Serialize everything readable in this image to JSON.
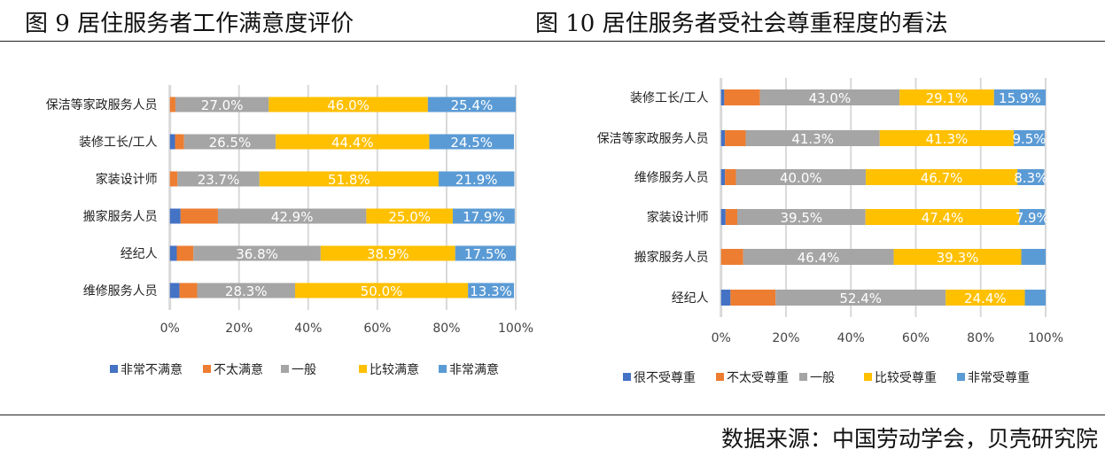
{
  "titles": {
    "left": "图 9  居住服务者工作满意度评价",
    "right": "图 10  居住服务者受社会尊重程度的看法"
  },
  "source": "数据来源：中国劳动学会，贝壳研究院",
  "colors": [
    "#4472C4",
    "#ED7D31",
    "#A5A5A5",
    "#FFC000",
    "#5B9BD5"
  ],
  "chart_data": [
    {
      "type": "bar",
      "orientation": "horizontal",
      "stacked": "percent",
      "categories": [
        "保洁等家政服务人员",
        "装修工长/工人",
        "家装设计师",
        "搬家服务人员",
        "经纪人",
        "维修服务人员"
      ],
      "xlim": [
        0,
        100
      ],
      "x_ticks": [
        "0%",
        "20%",
        "40%",
        "60%",
        "80%",
        "100%"
      ],
      "grid": true,
      "legend": "bottom",
      "series": [
        {
          "name": "非常不满意",
          "values": [
            0,
            1.5,
            0,
            3.1,
            2.0,
            2.8
          ],
          "labels": [
            "",
            "",
            "",
            "",
            "",
            ""
          ]
        },
        {
          "name": "不太满意",
          "values": [
            1.6,
            2.6,
            2.2,
            10.8,
            4.8,
            5.1
          ],
          "labels": [
            "",
            "",
            "",
            "",
            "",
            ""
          ]
        },
        {
          "name": "一般",
          "values": [
            27.0,
            26.5,
            23.7,
            42.9,
            36.8,
            28.3
          ],
          "labels": [
            "27.0%",
            "26.5%",
            "23.7%",
            "42.9%",
            "36.8%",
            "28.3%"
          ]
        },
        {
          "name": "比较满意",
          "values": [
            46.0,
            44.4,
            51.8,
            25.0,
            38.9,
            50.0
          ],
          "labels": [
            "46.0%",
            "44.4%",
            "51.8%",
            "25.0%",
            "38.9%",
            "50.0%"
          ]
        },
        {
          "name": "非常满意",
          "values": [
            25.4,
            24.5,
            21.9,
            17.9,
            17.5,
            13.3
          ],
          "labels": [
            "25.4%",
            "24.5%",
            "21.9%",
            "17.9%",
            "17.5%",
            "13.3%"
          ]
        }
      ]
    },
    {
      "type": "bar",
      "orientation": "horizontal",
      "stacked": "percent",
      "categories": [
        "装修工长/工人",
        "保洁等家政服务人员",
        "维修服务人员",
        "家装设计师",
        "搬家服务人员",
        "经纪人"
      ],
      "xlim": [
        0,
        100
      ],
      "x_ticks": [
        "0%",
        "20%",
        "40%",
        "60%",
        "80%",
        "100%"
      ],
      "grid": true,
      "legend": "bottom",
      "series": [
        {
          "name": "很不受尊重",
          "values": [
            1.0,
            1.2,
            1.2,
            1.4,
            0,
            2.9
          ],
          "labels": [
            "",
            "",
            "",
            "",
            "",
            ""
          ]
        },
        {
          "name": "不太受尊重",
          "values": [
            11.0,
            6.4,
            3.4,
            3.6,
            6.8,
            13.9
          ],
          "labels": [
            "",
            "",
            "",
            "",
            "",
            ""
          ]
        },
        {
          "name": "一般",
          "values": [
            43.0,
            41.3,
            40.0,
            39.5,
            46.4,
            52.4
          ],
          "labels": [
            "43.0%",
            "41.3%",
            "40.0%",
            "39.5%",
            "46.4%",
            "52.4%"
          ]
        },
        {
          "name": "比较受尊重",
          "values": [
            29.1,
            41.3,
            46.7,
            47.4,
            39.3,
            24.4
          ],
          "labels": [
            "29.1%",
            "41.3%",
            "46.7%",
            "47.4%",
            "39.3%",
            "24.4%"
          ]
        },
        {
          "name": "非常受尊重",
          "values": [
            15.9,
            9.5,
            8.3,
            7.9,
            7.5,
            6.4
          ],
          "labels": [
            "15.9%",
            "9.5%",
            "8.3%",
            "7.9%",
            "",
            ""
          ]
        }
      ]
    }
  ]
}
